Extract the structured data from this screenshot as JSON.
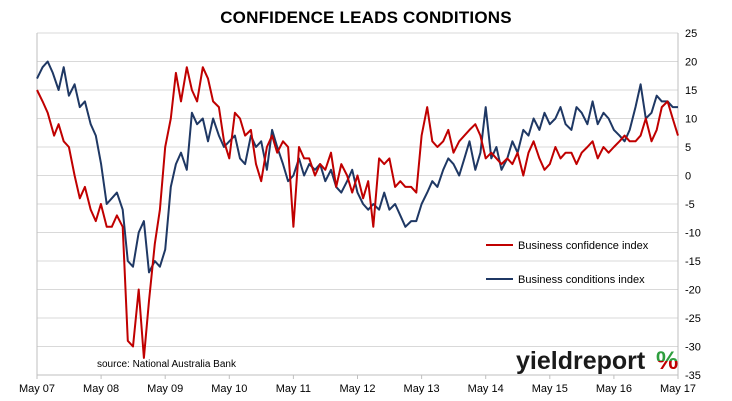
{
  "chart_data": {
    "type": "line",
    "title": "CONFIDENCE LEADS CONDITIONS",
    "xlabel": "",
    "ylabel": "",
    "ylim": [
      -35,
      25
    ],
    "y_ticks": [
      25,
      20,
      15,
      10,
      5,
      0,
      -5,
      -10,
      -15,
      -20,
      -25,
      -30,
      -35
    ],
    "x_range": [
      2007.333,
      2017.333
    ],
    "x_ticks": [
      {
        "label": "May 07",
        "x": 2007.333
      },
      {
        "label": "May 08",
        "x": 2008.333
      },
      {
        "label": "May 09",
        "x": 2009.333
      },
      {
        "label": "May 10",
        "x": 2010.333
      },
      {
        "label": "May 11",
        "x": 2011.333
      },
      {
        "label": "May 12",
        "x": 2012.333
      },
      {
        "label": "May 13",
        "x": 2013.333
      },
      {
        "label": "May 14",
        "x": 2014.333
      },
      {
        "label": "May 15",
        "x": 2015.333
      },
      {
        "label": "May 16",
        "x": 2016.333
      },
      {
        "label": "May 17",
        "x": 2017.333
      }
    ],
    "grid": "horizontal",
    "legend_position": "right-middle",
    "annotation": "source: National Australia Bank",
    "series": [
      {
        "name": "Business confidence index",
        "color": "#c00000",
        "points": [
          [
            2007.333,
            15
          ],
          [
            2007.42,
            13
          ],
          [
            2007.5,
            11
          ],
          [
            2007.6,
            7
          ],
          [
            2007.67,
            9
          ],
          [
            2007.75,
            6
          ],
          [
            2007.83,
            5
          ],
          [
            2007.92,
            0
          ],
          [
            2008.0,
            -4
          ],
          [
            2008.08,
            -2
          ],
          [
            2008.17,
            -6
          ],
          [
            2008.25,
            -8
          ],
          [
            2008.33,
            -5
          ],
          [
            2008.42,
            -9
          ],
          [
            2008.5,
            -9
          ],
          [
            2008.58,
            -7
          ],
          [
            2008.67,
            -9
          ],
          [
            2008.75,
            -29
          ],
          [
            2008.83,
            -30
          ],
          [
            2008.92,
            -20
          ],
          [
            2009.0,
            -32
          ],
          [
            2009.08,
            -22
          ],
          [
            2009.17,
            -12
          ],
          [
            2009.25,
            -6
          ],
          [
            2009.333,
            5
          ],
          [
            2009.42,
            10
          ],
          [
            2009.5,
            18
          ],
          [
            2009.58,
            13
          ],
          [
            2009.67,
            19
          ],
          [
            2009.75,
            15
          ],
          [
            2009.83,
            13
          ],
          [
            2009.92,
            19
          ],
          [
            2010.0,
            17
          ],
          [
            2010.08,
            13
          ],
          [
            2010.17,
            12
          ],
          [
            2010.25,
            6
          ],
          [
            2010.333,
            3
          ],
          [
            2010.42,
            11
          ],
          [
            2010.5,
            10
          ],
          [
            2010.58,
            7
          ],
          [
            2010.67,
            8
          ],
          [
            2010.75,
            2
          ],
          [
            2010.83,
            -1
          ],
          [
            2010.92,
            5
          ],
          [
            2011.0,
            7
          ],
          [
            2011.08,
            4
          ],
          [
            2011.17,
            6
          ],
          [
            2011.25,
            5
          ],
          [
            2011.333,
            -9
          ],
          [
            2011.42,
            5
          ],
          [
            2011.5,
            3
          ],
          [
            2011.58,
            3
          ],
          [
            2011.67,
            0
          ],
          [
            2011.75,
            2
          ],
          [
            2011.83,
            1
          ],
          [
            2011.92,
            4
          ],
          [
            2012.0,
            -2
          ],
          [
            2012.08,
            2
          ],
          [
            2012.17,
            0
          ],
          [
            2012.25,
            -3
          ],
          [
            2012.333,
            0
          ],
          [
            2012.42,
            -4
          ],
          [
            2012.5,
            -1
          ],
          [
            2012.58,
            -9
          ],
          [
            2012.67,
            3
          ],
          [
            2012.75,
            2
          ],
          [
            2012.83,
            3
          ],
          [
            2012.92,
            -2
          ],
          [
            2013.0,
            -1
          ],
          [
            2013.08,
            -2
          ],
          [
            2013.17,
            -2
          ],
          [
            2013.25,
            -3
          ],
          [
            2013.333,
            7
          ],
          [
            2013.42,
            12
          ],
          [
            2013.5,
            6
          ],
          [
            2013.58,
            5
          ],
          [
            2013.67,
            6
          ],
          [
            2013.75,
            8
          ],
          [
            2013.83,
            4
          ],
          [
            2013.92,
            6
          ],
          [
            2014.0,
            7
          ],
          [
            2014.08,
            8
          ],
          [
            2014.17,
            9
          ],
          [
            2014.25,
            7
          ],
          [
            2014.333,
            3
          ],
          [
            2014.42,
            4
          ],
          [
            2014.5,
            3
          ],
          [
            2014.58,
            2
          ],
          [
            2014.67,
            3
          ],
          [
            2014.75,
            2
          ],
          [
            2014.83,
            4
          ],
          [
            2014.92,
            0
          ],
          [
            2015.0,
            4
          ],
          [
            2015.08,
            6
          ],
          [
            2015.17,
            3
          ],
          [
            2015.25,
            1
          ],
          [
            2015.333,
            2
          ],
          [
            2015.42,
            5
          ],
          [
            2015.5,
            3
          ],
          [
            2015.58,
            4
          ],
          [
            2015.67,
            4
          ],
          [
            2015.75,
            2
          ],
          [
            2015.83,
            4
          ],
          [
            2015.92,
            5
          ],
          [
            2016.0,
            6
          ],
          [
            2016.08,
            3
          ],
          [
            2016.17,
            5
          ],
          [
            2016.25,
            4
          ],
          [
            2016.333,
            5
          ],
          [
            2016.42,
            6
          ],
          [
            2016.5,
            7
          ],
          [
            2016.58,
            6
          ],
          [
            2016.67,
            6
          ],
          [
            2016.75,
            7
          ],
          [
            2016.83,
            10
          ],
          [
            2016.92,
            6
          ],
          [
            2017.0,
            8
          ],
          [
            2017.08,
            12
          ],
          [
            2017.17,
            13
          ],
          [
            2017.25,
            10
          ],
          [
            2017.333,
            7
          ]
        ]
      },
      {
        "name": "Business conditions index",
        "color": "#1f3864",
        "points": [
          [
            2007.333,
            17
          ],
          [
            2007.42,
            19
          ],
          [
            2007.5,
            20
          ],
          [
            2007.58,
            18
          ],
          [
            2007.67,
            15
          ],
          [
            2007.75,
            19
          ],
          [
            2007.83,
            14
          ],
          [
            2007.92,
            16
          ],
          [
            2008.0,
            12
          ],
          [
            2008.08,
            13
          ],
          [
            2008.17,
            9
          ],
          [
            2008.25,
            7
          ],
          [
            2008.333,
            2
          ],
          [
            2008.42,
            -5
          ],
          [
            2008.5,
            -4
          ],
          [
            2008.58,
            -3
          ],
          [
            2008.67,
            -6
          ],
          [
            2008.75,
            -15
          ],
          [
            2008.83,
            -16
          ],
          [
            2008.92,
            -10
          ],
          [
            2009.0,
            -8
          ],
          [
            2009.08,
            -17
          ],
          [
            2009.17,
            -15
          ],
          [
            2009.25,
            -16
          ],
          [
            2009.333,
            -13
          ],
          [
            2009.42,
            -2
          ],
          [
            2009.5,
            2
          ],
          [
            2009.58,
            4
          ],
          [
            2009.67,
            1
          ],
          [
            2009.75,
            11
          ],
          [
            2009.83,
            9
          ],
          [
            2009.92,
            10
          ],
          [
            2010.0,
            6
          ],
          [
            2010.08,
            10
          ],
          [
            2010.17,
            7
          ],
          [
            2010.25,
            5
          ],
          [
            2010.333,
            6
          ],
          [
            2010.42,
            7
          ],
          [
            2010.5,
            3
          ],
          [
            2010.58,
            2
          ],
          [
            2010.67,
            7
          ],
          [
            2010.75,
            5
          ],
          [
            2010.83,
            6
          ],
          [
            2010.92,
            1
          ],
          [
            2011.0,
            8
          ],
          [
            2011.08,
            5
          ],
          [
            2011.17,
            2
          ],
          [
            2011.25,
            -1
          ],
          [
            2011.333,
            0
          ],
          [
            2011.42,
            3
          ],
          [
            2011.5,
            0
          ],
          [
            2011.58,
            2
          ],
          [
            2011.67,
            1
          ],
          [
            2011.75,
            2
          ],
          [
            2011.83,
            -1
          ],
          [
            2011.92,
            1
          ],
          [
            2012.0,
            -2
          ],
          [
            2012.08,
            -3
          ],
          [
            2012.17,
            -1
          ],
          [
            2012.25,
            1
          ],
          [
            2012.333,
            -3
          ],
          [
            2012.42,
            -5
          ],
          [
            2012.5,
            -6
          ],
          [
            2012.58,
            -5
          ],
          [
            2012.67,
            -6
          ],
          [
            2012.75,
            -3
          ],
          [
            2012.83,
            -6
          ],
          [
            2012.92,
            -5
          ],
          [
            2013.0,
            -7
          ],
          [
            2013.08,
            -9
          ],
          [
            2013.17,
            -8
          ],
          [
            2013.25,
            -8
          ],
          [
            2013.333,
            -5
          ],
          [
            2013.42,
            -3
          ],
          [
            2013.5,
            -1
          ],
          [
            2013.58,
            -2
          ],
          [
            2013.67,
            1
          ],
          [
            2013.75,
            3
          ],
          [
            2013.83,
            2
          ],
          [
            2013.92,
            0
          ],
          [
            2014.0,
            3
          ],
          [
            2014.08,
            6
          ],
          [
            2014.17,
            1
          ],
          [
            2014.25,
            4
          ],
          [
            2014.333,
            12
          ],
          [
            2014.42,
            3
          ],
          [
            2014.5,
            5
          ],
          [
            2014.58,
            1
          ],
          [
            2014.67,
            3
          ],
          [
            2014.75,
            6
          ],
          [
            2014.83,
            4
          ],
          [
            2014.92,
            8
          ],
          [
            2015.0,
            7
          ],
          [
            2015.08,
            10
          ],
          [
            2015.17,
            8
          ],
          [
            2015.25,
            11
          ],
          [
            2015.333,
            9
          ],
          [
            2015.42,
            10
          ],
          [
            2015.5,
            12
          ],
          [
            2015.58,
            9
          ],
          [
            2015.67,
            8
          ],
          [
            2015.75,
            12
          ],
          [
            2015.83,
            11
          ],
          [
            2015.92,
            9
          ],
          [
            2016.0,
            13
          ],
          [
            2016.08,
            9
          ],
          [
            2016.17,
            11
          ],
          [
            2016.25,
            10
          ],
          [
            2016.333,
            8
          ],
          [
            2016.42,
            7
          ],
          [
            2016.5,
            6
          ],
          [
            2016.58,
            8
          ],
          [
            2016.67,
            12
          ],
          [
            2016.75,
            16
          ],
          [
            2016.83,
            10
          ],
          [
            2016.92,
            11
          ],
          [
            2017.0,
            14
          ],
          [
            2017.08,
            13
          ],
          [
            2017.17,
            13
          ],
          [
            2017.25,
            12
          ],
          [
            2017.333,
            12
          ]
        ]
      }
    ]
  },
  "logo": {
    "text_main": "yieldreport",
    "text_symbol": "%",
    "color_main": "#1a1a1a",
    "color_symbol_top": "#2e9e3e",
    "color_symbol_bottom": "#c00000"
  }
}
